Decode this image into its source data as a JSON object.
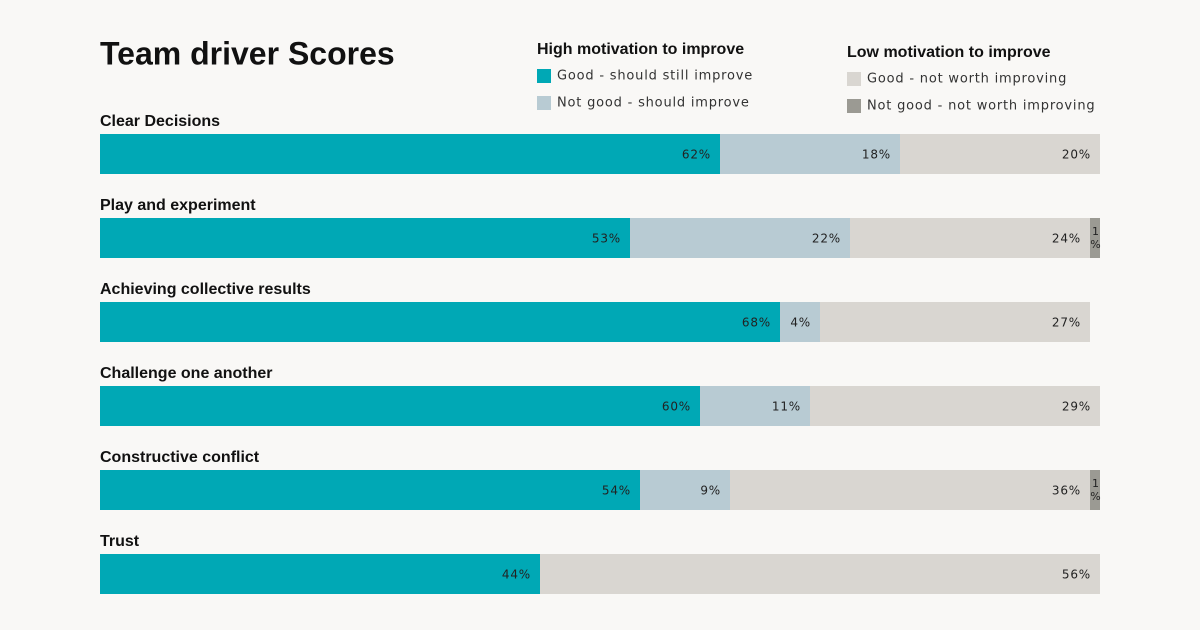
{
  "chart_data": {
    "type": "stacked-bar-horizontal",
    "title": "Team driver Scores",
    "legend_groups": [
      {
        "title": "High motivation to improve"
      },
      {
        "title": "Low motivation to improve"
      }
    ],
    "categories": [
      "Clear Decisions",
      "Play and experiment",
      "Achieving collective results",
      "Challenge one another",
      "Constructive conflict",
      "Trust"
    ],
    "xlim": [
      0,
      100
    ],
    "series": [
      {
        "name": "Good - should still improve",
        "color": "#00a8b5",
        "values": [
          62,
          53,
          68,
          60,
          54,
          44
        ],
        "value_labels": [
          "62%",
          "53%",
          "68%",
          "60%",
          "54%",
          "44%"
        ]
      },
      {
        "name": "Not good - should improve",
        "color": "#b8cbd3",
        "values": [
          18,
          22,
          4,
          11,
          9,
          0
        ],
        "value_labels": [
          "18%",
          "22%",
          "4%",
          "11%",
          "9%",
          null
        ]
      },
      {
        "name": "Good - not worth improving",
        "color": "#d9d6d1",
        "values": [
          20,
          24,
          27,
          29,
          36,
          56
        ],
        "value_labels": [
          "20%",
          "24%",
          "27%",
          "29%",
          "36%",
          "56%"
        ]
      },
      {
        "name": "Not good - not worth improving",
        "color": "#9b9a93",
        "values": [
          0,
          1,
          0,
          0,
          1,
          0
        ],
        "value_labels": [
          null,
          "1%",
          null,
          null,
          "1%",
          null
        ]
      }
    ]
  }
}
